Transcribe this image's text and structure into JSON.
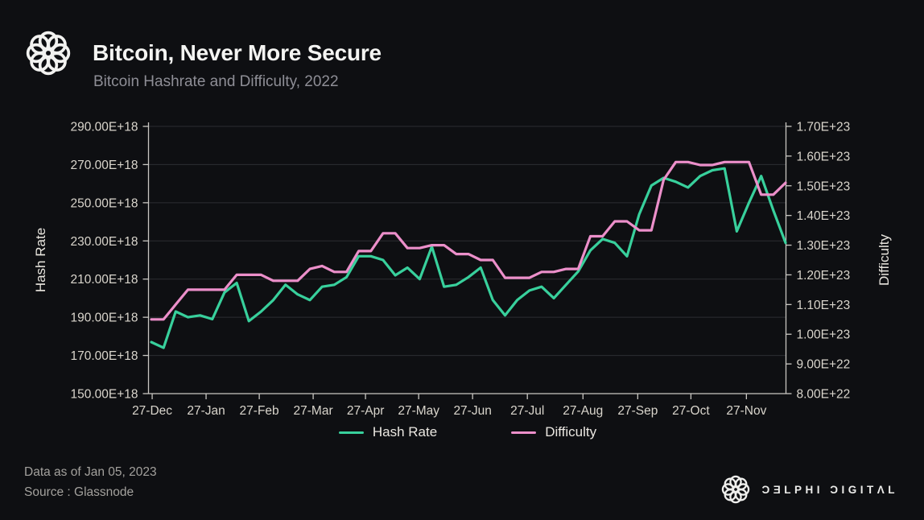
{
  "header": {
    "title": "Bitcoin, Never More Secure",
    "subtitle": "Bitcoin Hashrate and Difficulty, 2022",
    "logo": "delphi-knot-logo"
  },
  "legend": {
    "items": [
      "Hash Rate",
      "Difficulty"
    ],
    "position": "bottom-center"
  },
  "footer": {
    "data_as_of": "Data as of Jan 05, 2023",
    "source": "Source : Glassnode",
    "brand_name": "ƆƎLPHI ƆIGITΛL",
    "brand_logo": "delphi-knot-logo"
  },
  "colors": {
    "background": "#0e0f12",
    "hash_rate_line": "#38d09c",
    "difficulty_line": "#ec8fca",
    "grid_line": "#2c2e33",
    "axis_line": "#c9c7c2",
    "axis_text": "#d9d5cc",
    "title_text": "#f4f4f2",
    "subtitle_text": "#8e8e96",
    "footer_text": "#a3a19d"
  },
  "chart_data": {
    "type": "line",
    "title": "Bitcoin Hashrate and Difficulty, 2022",
    "grid": "horizontal-only",
    "x_tick_labels": [
      "27-Dec",
      "27-Jan",
      "27-Feb",
      "27-Mar",
      "27-Apr",
      "27-May",
      "27-Jun",
      "27-Jul",
      "27-Aug",
      "27-Sep",
      "27-Oct",
      "27-Nov"
    ],
    "x_tick_positions": [
      0.07,
      4.49,
      8.85,
      13.27,
      17.56,
      21.92,
      26.34,
      30.83,
      35.39,
      39.88,
      44.24,
      48.79
    ],
    "x_range_weeks": 52,
    "left_axis": {
      "label": "Hash Rate",
      "unit": "E+18",
      "min": 150,
      "max": 290,
      "tick_values": [
        290,
        270,
        250,
        230,
        210,
        190,
        170,
        150
      ],
      "tick_labels": [
        "290.00E+18",
        "270.00E+18",
        "250.00E+18",
        "230.00E+18",
        "210.00E+18",
        "190.00E+18",
        "170.00E+18",
        "150.00E+18"
      ]
    },
    "right_axis": {
      "label": "Difficulty",
      "unit": "E+23",
      "min": 0.8,
      "max": 1.7,
      "tick_values": [
        1.7,
        1.6,
        1.5,
        1.4,
        1.3,
        1.2,
        1.1,
        1.0,
        0.9,
        0.8
      ],
      "tick_labels": [
        "1.70E+23",
        "1.60E+23",
        "1.50E+23",
        "1.40E+23",
        "1.30E+23",
        "1.20E+23",
        "1.10E+23",
        "1.00E+23",
        "9.00E+22",
        "8.00E+22"
      ]
    },
    "series": [
      {
        "name": "Hash Rate",
        "axis": "left",
        "unit": "E+18",
        "color": "#38d09c",
        "values": [
          177,
          174,
          193,
          190,
          191,
          189,
          203,
          208,
          188,
          193,
          199,
          207,
          202,
          199,
          206,
          207,
          211,
          222,
          222,
          220,
          212,
          216,
          210,
          227,
          206,
          207,
          211,
          216,
          199,
          191,
          199,
          204,
          206,
          200,
          207,
          214,
          225,
          231,
          229,
          222,
          244,
          259,
          263,
          261,
          258,
          264,
          267,
          268,
          235,
          250,
          264,
          246,
          229
        ]
      },
      {
        "name": "Difficulty",
        "axis": "right",
        "unit": "E+23",
        "color": "#ec8fca",
        "values": [
          1.05,
          1.05,
          1.1,
          1.15,
          1.15,
          1.15,
          1.15,
          1.2,
          1.2,
          1.2,
          1.18,
          1.18,
          1.18,
          1.22,
          1.23,
          1.21,
          1.21,
          1.28,
          1.28,
          1.34,
          1.34,
          1.29,
          1.29,
          1.3,
          1.3,
          1.27,
          1.27,
          1.25,
          1.25,
          1.19,
          1.19,
          1.19,
          1.21,
          1.21,
          1.22,
          1.22,
          1.33,
          1.33,
          1.38,
          1.38,
          1.35,
          1.35,
          1.52,
          1.58,
          1.58,
          1.57,
          1.57,
          1.58,
          1.58,
          1.58,
          1.47,
          1.47,
          1.51
        ]
      }
    ]
  }
}
